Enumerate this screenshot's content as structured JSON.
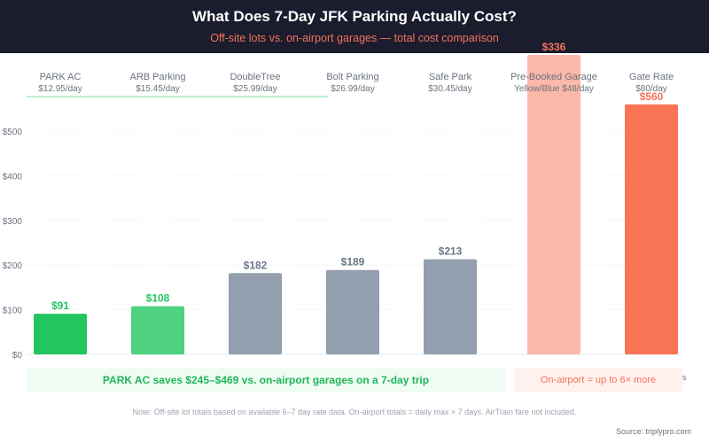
{
  "header": {
    "title": "What Does 7-Day JFK Parking Actually Cost?",
    "subtitle": "Off-site lots vs. on-airport garages — total cost comparison"
  },
  "colors": {
    "header_bg": "#1b1c2e",
    "park_ac": "#22c55e",
    "arb": "#4ed27f",
    "offsite_gray": "#939eae",
    "prebooked": "#fcb8a9",
    "gate": "#f87455",
    "accent_red": "#f4735a"
  },
  "chart_data": {
    "type": "bar",
    "title": "What Does 7-Day JFK Parking Actually Cost?",
    "subtitle": "Off-site lots vs. on-airport garages — total cost comparison",
    "xlabel": "",
    "ylabel": "",
    "ylim": [
      0,
      500
    ],
    "yticks": [
      "$0",
      "$100",
      "$200",
      "$300",
      "$400",
      "$500"
    ],
    "ytick_values": [
      0,
      100,
      200,
      300,
      400,
      500
    ],
    "grid": true,
    "categories": [
      "PARK AC",
      "ARB Parking",
      "DoubleTree",
      "Bolt Parking",
      "Safe Park",
      "Pre-Booked Garage",
      "Gate Rate"
    ],
    "rates": [
      "$12.95/day",
      "$15.45/day",
      "$25.99/day",
      "$26.99/day",
      "$30.45/day",
      "Yellow/Blue $48/day",
      "$80/day"
    ],
    "values": [
      91,
      108,
      182,
      189,
      213,
      336,
      560
    ],
    "data_labels": [
      "$91",
      "$108",
      "$182",
      "$189",
      "$213",
      "$336",
      "$560"
    ],
    "bar_colors": [
      "#22c55e",
      "#4ed27f",
      "#939eae",
      "#939eae",
      "#939eae",
      "#fcb8a9",
      "#f87455"
    ],
    "label_colors": [
      "#22c55e",
      "#22c55e",
      "#6b7689",
      "#6b7689",
      "#6b7689",
      "#f4735a",
      "#f4735a"
    ]
  },
  "callouts": {
    "savings": "PARK AC saves $245–$469 vs. on-airport garages on a 7-day trip",
    "onairport": "On-airport = up to 6× more",
    "stray_char": "s"
  },
  "footer": {
    "note": "Note: Off-site lot totals based on available 6–7 day rate data. On-airport totals = daily max × 7 days. AirTrain fare not included.",
    "source": "Source: triplypro.com"
  }
}
